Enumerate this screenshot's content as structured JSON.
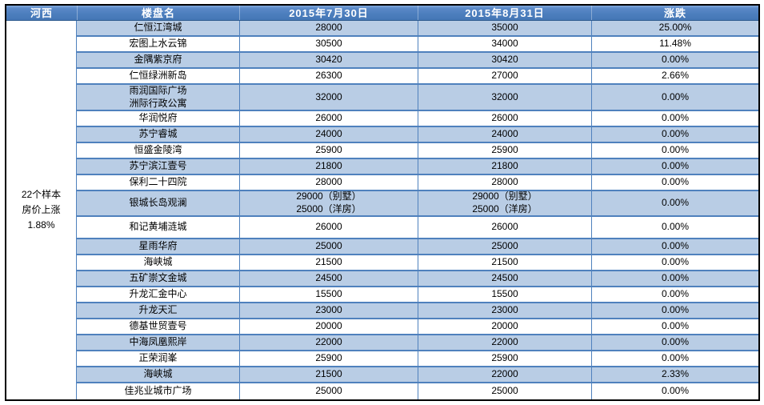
{
  "table": {
    "headers": [
      "河西",
      "楼盘名",
      "2015年7月30日",
      "2015年8月31日",
      "涨跌"
    ],
    "region_summary": "22个样本\n房价上涨\n1.88%",
    "rows": [
      {
        "name": "仁恒江湾城",
        "jul": "28000",
        "aug": "35000",
        "change": "25.00%"
      },
      {
        "name": "宏图上水云锦",
        "jul": "30500",
        "aug": "34000",
        "change": "11.48%"
      },
      {
        "name": "金隅紫京府",
        "jul": "30420",
        "aug": "30420",
        "change": "0.00%"
      },
      {
        "name": "仁恒绿洲新岛",
        "jul": "26300",
        "aug": "27000",
        "change": "2.66%"
      },
      {
        "name": "雨润国际广场\n洲际行政公寓",
        "jul": "32000",
        "aug": "32000",
        "change": "0.00%"
      },
      {
        "name": "华润悦府",
        "jul": "26000",
        "aug": "26000",
        "change": "0.00%"
      },
      {
        "name": "苏宁睿城",
        "jul": "24000",
        "aug": "24000",
        "change": "0.00%"
      },
      {
        "name": "恒盛金陵湾",
        "jul": "25900",
        "aug": "25900",
        "change": "0.00%"
      },
      {
        "name": "苏宁滨江壹号",
        "jul": "21800",
        "aug": "21800",
        "change": "0.00%"
      },
      {
        "name": "保利二十四院",
        "jul": "28000",
        "aug": "28000",
        "change": "0.00%"
      },
      {
        "name": "银城长岛观澜",
        "jul": "29000（别墅）\n25000（洋房）",
        "aug": "29000（别墅）\n25000（洋房）",
        "change": "0.00%"
      },
      {
        "name": "和记黄埔涟城",
        "jul": "26000",
        "aug": "26000",
        "change": "0.00%"
      },
      {
        "name": "星雨华府",
        "jul": "25000",
        "aug": "25000",
        "change": "0.00%"
      },
      {
        "name": "海峡城",
        "jul": "21500",
        "aug": "21500",
        "change": "0.00%"
      },
      {
        "name": "五矿崇文金城",
        "jul": "24500",
        "aug": "24500",
        "change": "0.00%"
      },
      {
        "name": "升龙汇金中心",
        "jul": "15500",
        "aug": "15500",
        "change": "0.00%"
      },
      {
        "name": "升龙天汇",
        "jul": "23000",
        "aug": "23000",
        "change": "0.00%"
      },
      {
        "name": "德基世贸壹号",
        "jul": "20000",
        "aug": "20000",
        "change": "0.00%"
      },
      {
        "name": "中海凤凰熙岸",
        "jul": "22000",
        "aug": "22000",
        "change": "0.00%"
      },
      {
        "name": "正荣润峯",
        "jul": "25900",
        "aug": "25900",
        "change": "0.00%"
      },
      {
        "name": "海峡城",
        "jul": "21500",
        "aug": "22000",
        "change": "2.33%"
      },
      {
        "name": "佳兆业城市广场",
        "jul": "25000",
        "aug": "25000",
        "change": "0.00%"
      }
    ]
  },
  "colors": {
    "header_bg": "#4c7ebd",
    "header_text": "#ffffff",
    "row_alt_bg": "#b9cde5",
    "row_border": "#4f81bd",
    "outer_border": "#000000",
    "body_text": "#000000"
  }
}
